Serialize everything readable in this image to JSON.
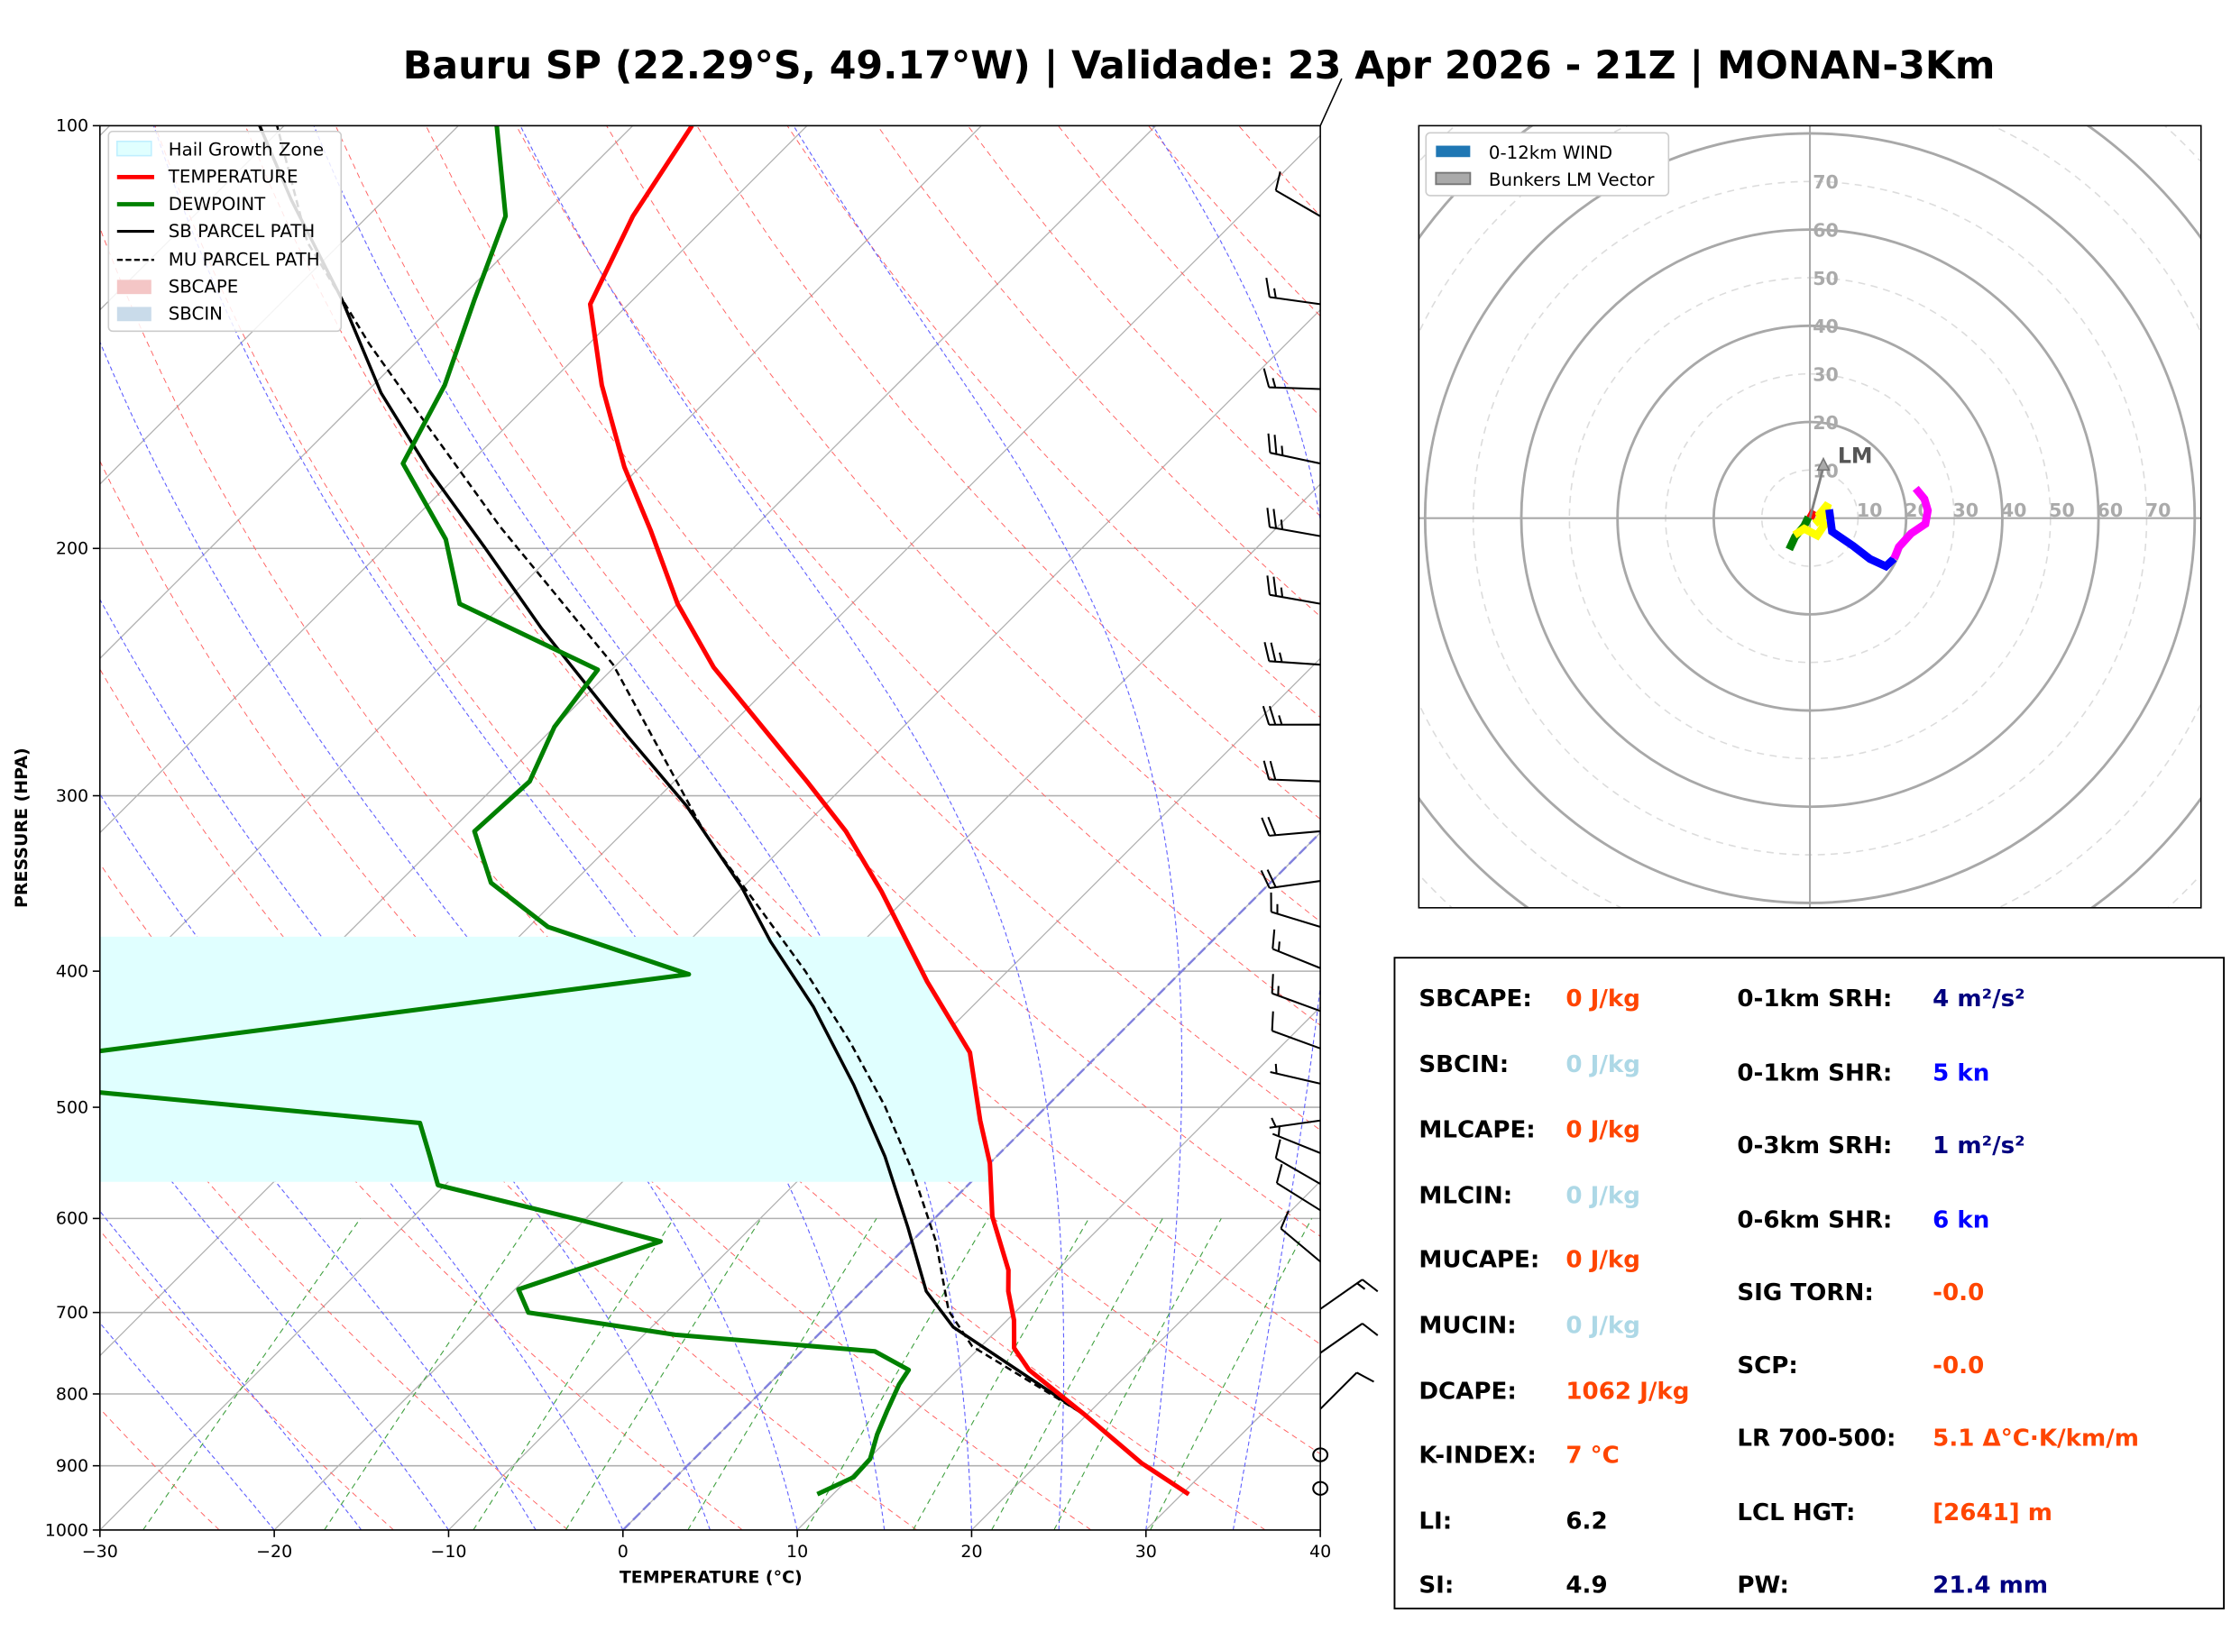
{
  "title": "Bauru SP (22.29°S, 49.17°W) | Validade: 23 Apr 2026 - 21Z | MONAN-3Km",
  "chart_data": [
    {
      "type": "line",
      "subtype": "skew-t log-p",
      "xlabel": "TEMPERATURE (°C)",
      "ylabel": "PRESSURE (HPA)",
      "xlim": [
        -30,
        40
      ],
      "ylim": [
        1000,
        100
      ],
      "yscale": "log",
      "grid": true,
      "legend_placement": "top-left",
      "xticks": [
        "−30",
        "−20",
        "−10",
        "0",
        "10",
        "20",
        "30",
        "40"
      ],
      "yticks": [
        "100",
        "200",
        "300",
        "400",
        "500",
        "600",
        "700",
        "800",
        "900",
        "1000"
      ],
      "legend": [
        "Hail Growth Zone",
        "TEMPERATURE",
        "DEWPOINT",
        "SB PARCEL PATH",
        "MU PARCEL PATH",
        "SBCAPE",
        "SBCIN"
      ],
      "colors": {
        "temperature": "#ff0000",
        "dewpoint": "#008000",
        "sb_parcel": "#000000",
        "mu_parcel": "#000000",
        "hail": "#e0ffff",
        "sbcape": "#f4c6c6",
        "sbcin": "#c9dbea",
        "isotherm": "#a0a0a0",
        "dry_adiabat": "#ff6060",
        "moist_adiabat": "#6060ff",
        "mixing_ratio": "#40a040",
        "zero_isotherm": "#8080dd"
      },
      "hail_growth_zone_hpa": [
        565,
        378
      ],
      "temperature": [
        [
          943,
          30.4
        ],
        [
          896,
          25.9
        ],
        [
          829,
          20.0
        ],
        [
          769,
          14.1
        ],
        [
          742,
          12.0
        ],
        [
          709,
          10.4
        ],
        [
          676,
          8.4
        ],
        [
          653,
          7.2
        ],
        [
          598,
          3.2
        ],
        [
          548,
          0.0
        ],
        [
          511,
          -3.0
        ],
        [
          457,
          -7.5
        ],
        [
          407,
          -14.0
        ],
        [
          351,
          -21.8
        ],
        [
          318,
          -27.3
        ],
        [
          293,
          -32.4
        ],
        [
          243,
          -44.3
        ],
        [
          219,
          -50.0
        ],
        [
          194,
          -55.8
        ],
        [
          175,
          -60.9
        ],
        [
          153,
          -66.9
        ],
        [
          134,
          -72.2
        ],
        [
          116,
          -74.8
        ],
        [
          100,
          -76.6
        ]
      ],
      "dewpoint": [
        [
          943,
          9.1
        ],
        [
          917,
          10.2
        ],
        [
          890,
          10.1
        ],
        [
          855,
          9.1
        ],
        [
          822,
          8.3
        ],
        [
          788,
          7.5
        ],
        [
          769,
          7.2
        ],
        [
          746,
          4.2
        ],
        [
          726,
          -8.2
        ],
        [
          700,
          -17.9
        ],
        [
          674,
          -19.8
        ],
        [
          623,
          -14.4
        ],
        [
          602,
          -20.1
        ],
        [
          568,
          -30.4
        ],
        [
          542,
          -32.5
        ],
        [
          513,
          -35.0
        ],
        [
          488,
          -55.1
        ],
        [
          470,
          -68.0
        ],
        [
          456,
          -57.5
        ],
        [
          402,
          -28.1
        ],
        [
          372,
          -38.9
        ],
        [
          346,
          -44.7
        ],
        [
          318,
          -48.6
        ],
        [
          293,
          -48.3
        ],
        [
          268,
          -50.0
        ],
        [
          244,
          -50.8
        ],
        [
          219,
          -62.5
        ],
        [
          197,
          -67.0
        ],
        [
          174,
          -73.8
        ],
        [
          153,
          -75.9
        ],
        [
          133,
          -79.1
        ],
        [
          116,
          -82.1
        ],
        [
          100,
          -87.8
        ]
      ],
      "sb_parcel": [
        [
          943,
          30.4
        ],
        [
          896,
          25.9
        ],
        [
          829,
          20.0
        ],
        [
          717,
          7.3
        ],
        [
          676,
          3.7
        ],
        [
          609,
          -1.0
        ],
        [
          542,
          -6.4
        ],
        [
          482,
          -12.3
        ],
        [
          424,
          -19.1
        ],
        [
          381,
          -25.3
        ],
        [
          349,
          -30.0
        ],
        [
          305,
          -37.9
        ],
        [
          272,
          -45.3
        ],
        [
          228,
          -56.4
        ],
        [
          200,
          -64.2
        ],
        [
          176,
          -71.9
        ],
        [
          155,
          -79.1
        ],
        [
          133,
          -86.7
        ],
        [
          113,
          -95.3
        ],
        [
          100,
          -101.4
        ]
      ],
      "mu_parcel": [
        [
          943,
          30.4
        ],
        [
          896,
          25.9
        ],
        [
          829,
          20.0
        ],
        [
          740,
          9.5
        ],
        [
          698,
          6.1
        ],
        [
          623,
          1.4
        ],
        [
          555,
          -4.0
        ],
        [
          499,
          -9.3
        ],
        [
          449,
          -15.0
        ],
        [
          400,
          -21.6
        ],
        [
          364,
          -27.3
        ],
        [
          320,
          -35.1
        ],
        [
          242,
          -50.2
        ],
        [
          193,
          -64.6
        ],
        [
          164,
          -74.4
        ],
        [
          143,
          -82.6
        ],
        [
          121,
          -92.0
        ],
        [
          100,
          -100.4
        ]
      ],
      "wind_barbs": [
        {
          "p": 116,
          "dir": 300,
          "kn": 10
        },
        {
          "p": 134,
          "dir": 278,
          "kn": 15
        },
        {
          "p": 154,
          "dir": 272,
          "kn": 15
        },
        {
          "p": 174,
          "dir": 282,
          "kn": 25
        },
        {
          "p": 196,
          "dir": 280,
          "kn": 25
        },
        {
          "p": 219,
          "dir": 280,
          "kn": 25
        },
        {
          "p": 242,
          "dir": 274,
          "kn": 25
        },
        {
          "p": 267,
          "dir": 270,
          "kn": 25
        },
        {
          "p": 293,
          "dir": 272,
          "kn": 20
        },
        {
          "p": 318,
          "dir": 265,
          "kn": 20
        },
        {
          "p": 345,
          "dir": 262,
          "kn": 20
        },
        {
          "p": 372,
          "dir": 287,
          "kn": 15
        },
        {
          "p": 398,
          "dir": 292,
          "kn": 15
        },
        {
          "p": 427,
          "dir": 290,
          "kn": 15
        },
        {
          "p": 454,
          "dir": 290,
          "kn": 10
        },
        {
          "p": 481,
          "dir": 283,
          "kn": 5
        },
        {
          "p": 511,
          "dir": 262,
          "kn": 5
        },
        {
          "p": 539,
          "dir": 292,
          "kn": 5
        },
        {
          "p": 567,
          "dir": 300,
          "kn": 10
        },
        {
          "p": 592,
          "dir": 302,
          "kn": 10
        },
        {
          "p": 644,
          "dir": 310,
          "kn": 10
        },
        {
          "p": 696,
          "dir": 55,
          "kn": 15
        },
        {
          "p": 748,
          "dir": 55,
          "kn": 10
        },
        {
          "p": 820,
          "dir": 45,
          "kn": 10
        },
        {
          "p": 884,
          "dir": 0,
          "kn": 0
        },
        {
          "p": 934,
          "dir": 0,
          "kn": 0
        }
      ]
    },
    {
      "type": "line",
      "subtype": "hodograph",
      "units": "kn",
      "ring_labels": [
        "10",
        "20",
        "30",
        "40",
        "50",
        "60",
        "70"
      ],
      "legend": [
        "0-12km WIND",
        "Bunkers LM Vector"
      ],
      "legend_placement": "top-left",
      "colors": {
        "wind_legend": "#1f77b4",
        "lm": "#808080",
        "rings": "#a8a8a8"
      },
      "lm_label": "LM",
      "lm_vector": [
        2.8,
        11.8
      ],
      "segments": [
        {
          "color": "#ff0000",
          "uv": [
            [
              0,
              0
            ],
            [
              0.9,
              1.5
            ]
          ]
        },
        {
          "color": "#008000",
          "uv": [
            [
              -0.3,
              0.2
            ],
            [
              -1.2,
              -1.6
            ],
            [
              -3.1,
              -3.9
            ],
            [
              -4.3,
              -6.5
            ]
          ]
        },
        {
          "color": "#ffff00",
          "uv": [
            [
              -3.2,
              -3.5
            ],
            [
              -1.2,
              -2.2
            ],
            [
              1.5,
              -3.6
            ],
            [
              2.9,
              -1.5
            ],
            [
              2.0,
              0.8
            ],
            [
              3.8,
              3.0
            ],
            [
              3.0,
              0.6
            ],
            [
              1.0,
              -1.2
            ]
          ]
        },
        {
          "color": "#0000ff",
          "uv": [
            [
              4.0,
              1.8
            ],
            [
              4.6,
              -2.8
            ],
            [
              9.0,
              -5.8
            ],
            [
              12.5,
              -8.5
            ],
            [
              15.8,
              -10.0
            ],
            [
              17.5,
              -8.4
            ]
          ]
        },
        {
          "color": "#ff00ff",
          "uv": [
            [
              17.5,
              -8.4
            ],
            [
              18.5,
              -6.0
            ],
            [
              21.0,
              -3.2
            ],
            [
              24.0,
              -1.2
            ],
            [
              24.5,
              1.6
            ],
            [
              23.8,
              4.0
            ],
            [
              22.0,
              6.2
            ]
          ]
        }
      ]
    }
  ],
  "stats": {
    "left": [
      {
        "label": "SBCAPE:",
        "value": "0 J/kg",
        "color": "#ff4500"
      },
      {
        "label": "SBCIN:",
        "value": "0 J/kg",
        "color": "#add8e6"
      },
      {
        "label": "MLCAPE:",
        "value": "0 J/kg",
        "color": "#ff4500"
      },
      {
        "label": "MLCIN:",
        "value": "0 J/kg",
        "color": "#add8e6"
      },
      {
        "label": "MUCAPE:",
        "value": "0 J/kg",
        "color": "#ff4500"
      },
      {
        "label": "MUCIN:",
        "value": "0 J/kg",
        "color": "#add8e6"
      },
      {
        "label": "DCAPE:",
        "value": "1062 J/kg",
        "color": "#ff4500"
      },
      {
        "label": "K-INDEX:",
        "value": "7 °C",
        "color": "#ff4500"
      },
      {
        "label": "LI:",
        "value": "6.2",
        "color": "#000000"
      },
      {
        "label": "SI:",
        "value": "4.9",
        "color": "#000000"
      }
    ],
    "right": [
      {
        "label": "0-1km SRH:",
        "value": "4 m²/s²",
        "color": "#000080"
      },
      {
        "label": "0-1km SHR:",
        "value": "5 kn",
        "color": "#0000ff"
      },
      {
        "label": "0-3km SRH:",
        "value": "1 m²/s²",
        "color": "#000080"
      },
      {
        "label": "0-6km SHR:",
        "value": "6 kn",
        "color": "#0000ff"
      },
      {
        "label": "SIG TORN:",
        "value": "-0.0",
        "color": "#ff4500"
      },
      {
        "label": "SCP:",
        "value": "-0.0",
        "color": "#ff4500"
      },
      {
        "label": "LR 700-500:",
        "value": "5.1 Δ°C·K/km/m",
        "color": "#ff4500"
      },
      {
        "label": "LCL HGT:",
        "value": "[2641] m",
        "color": "#ff4500"
      },
      {
        "label": "PW:",
        "value": "21.4 mm",
        "color": "#000080"
      }
    ]
  }
}
